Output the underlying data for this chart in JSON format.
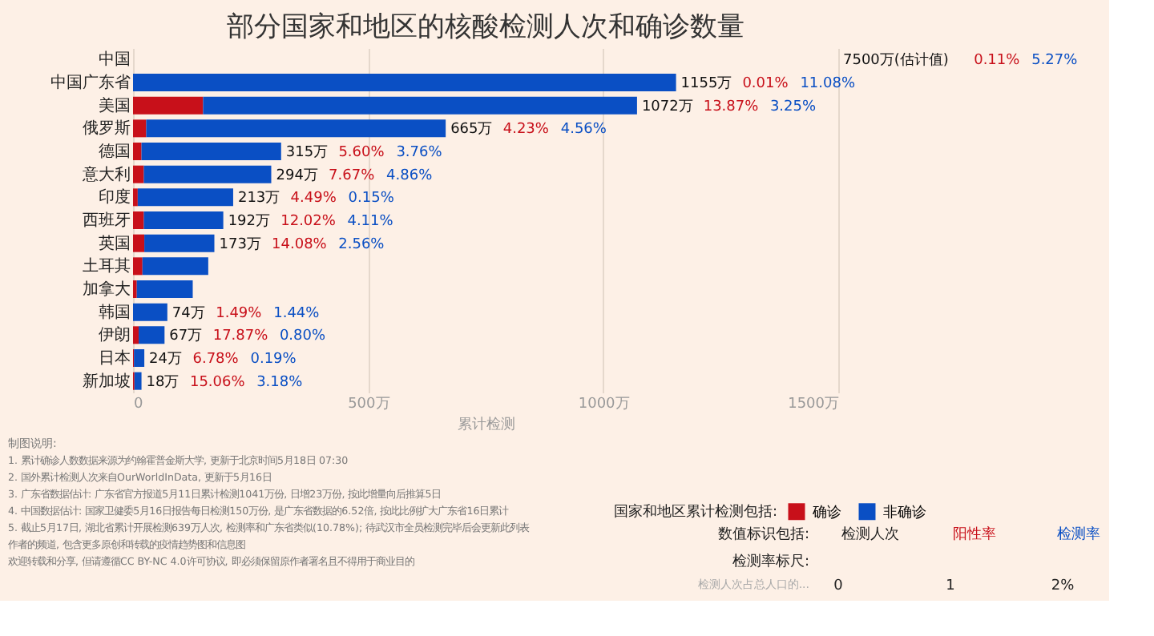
{
  "chart_data": {
    "type": "bar",
    "orientation": "horizontal",
    "stacked": true,
    "title": "部分国家和地区的核酸检测人次和确诊数量",
    "categories": [
      "中国",
      "中国广东省",
      "美国",
      "俄罗斯",
      "德国",
      "意大利",
      "印度",
      "西班牙",
      "英国",
      "土耳其",
      "加拿大",
      "韩国",
      "伊朗",
      "日本",
      "新加坡"
    ],
    "series": [
      {
        "name": "确诊",
        "color": "#c8101a",
        "values": [
          null,
          0,
          149,
          28,
          18,
          23,
          10,
          23,
          24,
          20,
          8,
          null,
          12,
          2,
          3
        ]
      },
      {
        "name": "非确诊",
        "color": "#0a4fc4",
        "values": [
          null,
          1155,
          923,
          637,
          297,
          271,
          203,
          169,
          149,
          140,
          119,
          73,
          55,
          22,
          15
        ]
      }
    ],
    "totals": [
      null,
      "1155万",
      "1072万",
      "665万",
      "315万",
      "294万",
      "213万",
      "192万",
      "173万",
      null,
      null,
      "74万",
      "67万",
      "24万",
      "18万"
    ],
    "xlim": [
      0,
      1500
    ],
    "xticks": [
      {
        "value": 0,
        "label": "0"
      },
      {
        "value": 500,
        "label": "500万"
      },
      {
        "value": 1000,
        "label": "1000万"
      },
      {
        "value": 1500,
        "label": "1500万"
      }
    ],
    "xlabel": "累计检测",
    "grid": "x",
    "legend": "bottom right",
    "legend_title": "国家和地区累计检测包括:",
    "annotations": [
      "7500万(估计值)",
      "0.11%",
      "5.27%",
      "0.01%",
      "11.08%",
      "13.87%",
      "3.25%",
      "4.23%",
      "4.56%",
      "5.60%",
      "3.76%",
      "7.67%",
      "4.86%",
      "4.49%",
      "0.15%",
      "12.02%",
      "4.11%",
      "14.08%",
      "2.56%",
      "1.49%",
      "1.44%",
      "17.87%",
      "0.80%",
      "6.78%",
      "0.19%",
      "15.06%",
      "3.18%",
      "制图说明:",
      "1. 累计确诊人数数据来源为约翰霍普金斯大学, 更新于北京时间5月18日 07:30",
      "2. 国外累计检测人次来自OurWorldInData, 更新于5月16日",
      "3. 广东省数据估计: 广东省官方报道5月11日累计检测1041万份, 日增23万份, 按此增量向后推算5日",
      "4. 中国数据估计: 国家卫健委5月16日报告每日检测150万份, 是广东省数据的6.52倍, 按此比例扩大广东省16日累计",
      "5. 截止5月17日, 湖北省累计开展检测639万人次, 检测率和广东省类似(10.78%); 待武汉市全员检测完毕后会更新此列表",
      "作者的频道, 包含更多原创和转载的疫情趋势图和信息图",
      "欢迎转载和分享, 但请遵循CC BY-NC 4.0许可协议, 即必须保留原作者署名且不得用于商业目的",
      "数值标识包括:",
      "检测人次",
      "阳性率",
      "检测率",
      "检测率标尺:",
      "检测人次占总人口的...",
      "0",
      "1",
      "2%"
    ]
  }
}
